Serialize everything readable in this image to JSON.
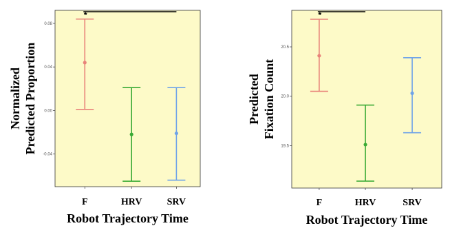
{
  "chart_data": [
    {
      "type": "errorbar",
      "xlabel": "Robot Trajectory Time",
      "ylabel_lines": [
        "Normalized",
        "Predicted Proportion"
      ],
      "categories": [
        "F",
        "HRV",
        "SRV"
      ],
      "colors": [
        "#e8837a",
        "#3aaa35",
        "#6fa3e8"
      ],
      "values": [
        0.044,
        -0.022,
        -0.021
      ],
      "lower": [
        0.001,
        -0.065,
        -0.064
      ],
      "upper": [
        0.084,
        0.021,
        0.021
      ],
      "ylim": [
        -0.07,
        0.092
      ],
      "yticks": [
        -0.04,
        0.0,
        0.04,
        0.08
      ],
      "ytick_labels": [
        "-0.04",
        "0.00",
        "0.04",
        "0.08"
      ],
      "significance": {
        "from": "F",
        "to": "SRV",
        "label": "*"
      },
      "background": "#fdfac8"
    },
    {
      "type": "errorbar",
      "xlabel": "Robot Trajectory Time",
      "ylabel_lines": [
        "Predicted",
        "Fixation Count"
      ],
      "categories": [
        "F",
        "HRV",
        "SRV"
      ],
      "colors": [
        "#e8837a",
        "#3aaa35",
        "#6fa3e8"
      ],
      "values": [
        20.41,
        19.51,
        20.03
      ],
      "lower": [
        20.05,
        19.14,
        19.63
      ],
      "upper": [
        20.78,
        19.91,
        20.39
      ],
      "ylim": [
        19.07,
        20.87
      ],
      "yticks": [
        19.5,
        20.0,
        20.5
      ],
      "ytick_labels": [
        "19.5",
        "20.0",
        "20.5"
      ],
      "significance": {
        "from": "F",
        "to": "HRV",
        "label": "*"
      },
      "background": "#fdfac8"
    }
  ]
}
